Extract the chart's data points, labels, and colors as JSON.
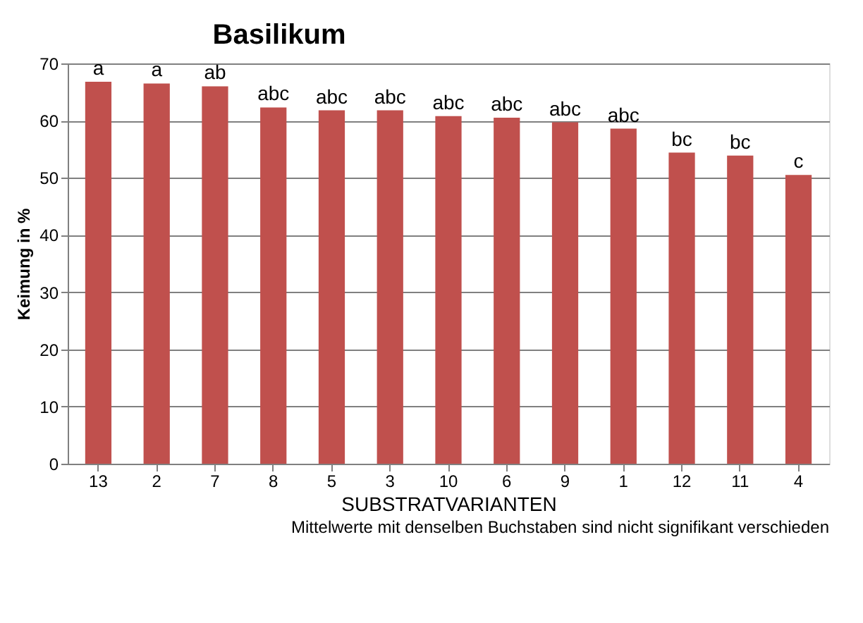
{
  "chart_data": {
    "type": "bar",
    "title": "Basilikum",
    "xlabel": "SUBSTRATVARIANTEN",
    "ylabel": "Keimung in %",
    "categories": [
      "13",
      "2",
      "7",
      "8",
      "5",
      "3",
      "10",
      "6",
      "9",
      "1",
      "12",
      "11",
      "4"
    ],
    "values": [
      66.8,
      66.5,
      66.0,
      62.3,
      61.8,
      61.8,
      60.8,
      60.5,
      59.7,
      58.6,
      54.4,
      53.9,
      50.5
    ],
    "color": "#c0504d",
    "ylim": [
      0,
      70
    ],
    "yticks": [
      0,
      10,
      20,
      30,
      40,
      50,
      60,
      70
    ],
    "grid": "y",
    "annotations": [
      {
        "text": "a",
        "x": "13",
        "y": 66.8
      },
      {
        "text": "a",
        "x": "2",
        "y": 66.5
      },
      {
        "text": "ab",
        "x": "7",
        "y": 66.0
      },
      {
        "text": "abc",
        "x": "8",
        "y": 62.3
      },
      {
        "text": "abc",
        "x": "5",
        "y": 61.8
      },
      {
        "text": "abc",
        "x": "3",
        "y": 61.8
      },
      {
        "text": "abc",
        "x": "10",
        "y": 60.8
      },
      {
        "text": "abc",
        "x": "6",
        "y": 60.5
      },
      {
        "text": "abc",
        "x": "9",
        "y": 59.7
      },
      {
        "text": "abc",
        "x": "1",
        "y": 58.6
      },
      {
        "text": "bc",
        "x": "12",
        "y": 54.4
      },
      {
        "text": "bc",
        "x": "11",
        "y": 53.9
      },
      {
        "text": "c",
        "x": "4",
        "y": 50.5
      },
      "Mittelwerte mit denselben Buchstaben sind nicht signifikant verschieden"
    ]
  }
}
